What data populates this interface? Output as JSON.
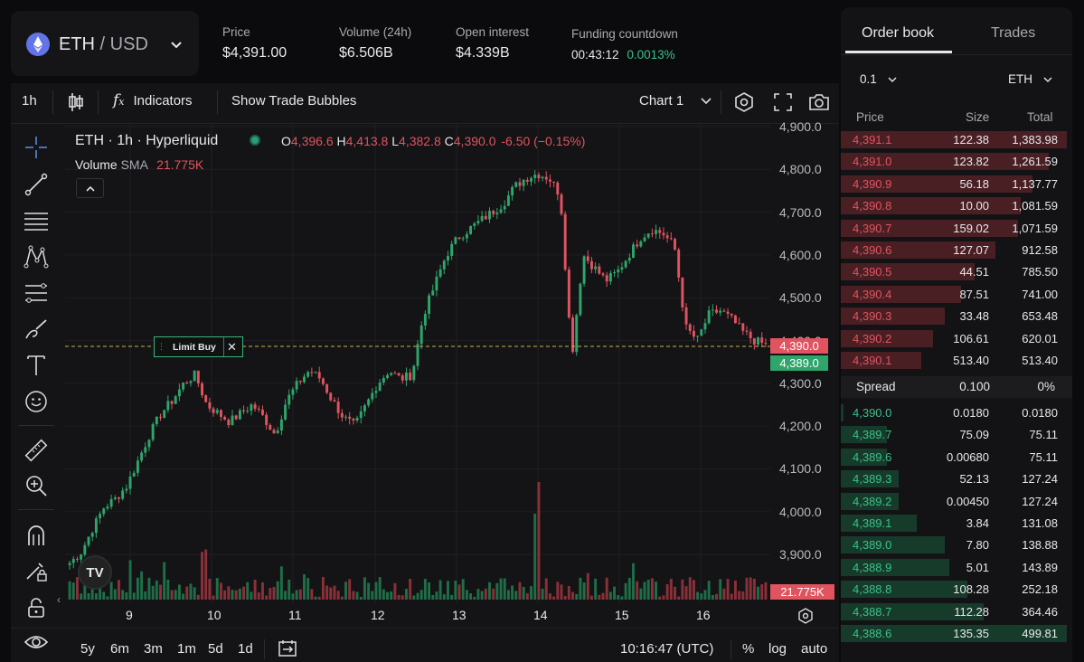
{
  "ticker": {
    "pair_base": "ETH",
    "pair_sep": " / ",
    "pair_quote": "USD",
    "stats": [
      {
        "label": "Price",
        "value": "$4,391.00"
      },
      {
        "label": "Volume (24h)",
        "value": "$6.506B"
      },
      {
        "label": "Open interest",
        "value": "$4.339B"
      }
    ],
    "funding": {
      "label": "Funding countdown",
      "time": "00:43:12",
      "rate": "0.0013%"
    }
  },
  "toolbar": {
    "interval": "1h",
    "indicators": "Indicators",
    "trade_bubbles": "Show Trade Bubbles",
    "chart_select": "Chart 1"
  },
  "chart": {
    "legend_title": "ETH · 1h · Hyperliquid",
    "ohlc": {
      "o_label": "O",
      "o": "4,396.6",
      "h_label": "H",
      "h": "4,413.8",
      "l_label": "L",
      "l": "4,382.8",
      "c_label": "C",
      "c": "4,390.0",
      "change": "-6.50 (−0.15%)"
    },
    "volume_label": "Volume",
    "volume_sma": "SMA",
    "volume_value": "21.775K",
    "limit_label": "Limit Buy",
    "price_tag_ask": "4,390.0",
    "price_tag_bid": "4,389.0",
    "volume_tag": "21.775K",
    "y_ticks": [
      "4,900.0",
      "4,800.0",
      "4,700.0",
      "4,600.0",
      "4,500.0",
      "4,400.0",
      "4,300.0",
      "4,200.0",
      "4,100.0",
      "4,000.0",
      "3,900.0"
    ],
    "x_ticks": [
      "9",
      "10",
      "11",
      "12",
      "13",
      "14",
      "15",
      "16"
    ],
    "logo": "TV"
  },
  "chart_data": {
    "type": "candlestick",
    "interval": "1h",
    "ylim": [
      3870,
      4910
    ],
    "x_ticks_day_labels": [
      "9",
      "10",
      "11",
      "12",
      "13",
      "14",
      "15",
      "16"
    ],
    "limit_order_price": 4390,
    "approx_closes": [
      3880,
      3905,
      3960,
      4010,
      4030,
      4060,
      4120,
      4180,
      4230,
      4260,
      4300,
      4320,
      4250,
      4230,
      4210,
      4230,
      4250,
      4220,
      4180,
      4260,
      4300,
      4330,
      4310,
      4260,
      4220,
      4200,
      4250,
      4300,
      4330,
      4310,
      4320,
      4460,
      4530,
      4600,
      4640,
      4660,
      4680,
      4700,
      4720,
      4760,
      4780,
      4790,
      4780,
      4740,
      4360,
      4600,
      4570,
      4540,
      4560,
      4600,
      4640,
      4660,
      4650,
      4620,
      4430,
      4400,
      4460,
      4470,
      4450,
      4420,
      4400,
      4390
    ]
  },
  "bottom": {
    "ranges": [
      "5y",
      "6m",
      "3m",
      "1m",
      "5d",
      "1d"
    ],
    "clock": "10:16:47 (UTC)",
    "percent": "%",
    "log": "log",
    "auto": "auto"
  },
  "orderbook": {
    "tabs": [
      "Order book",
      "Trades"
    ],
    "tick_size": "0.1",
    "unit": "ETH",
    "headers": [
      "Price",
      "Size",
      "Total"
    ],
    "asks": [
      [
        "4,391.1",
        "122.38",
        "1,383.98",
        0.98
      ],
      [
        "4,391.0",
        "123.82",
        "1,261.59",
        0.9
      ],
      [
        "4,390.9",
        "56.18",
        "1,137.77",
        0.83
      ],
      [
        "4,390.8",
        "10.00",
        "1,081.59",
        0.78
      ],
      [
        "4,390.7",
        "159.02",
        "1,071.59",
        0.77
      ],
      [
        "4,390.6",
        "127.07",
        "912.58",
        0.67
      ],
      [
        "4,390.5",
        "44.51",
        "785.50",
        0.58
      ],
      [
        "4,390.4",
        "87.51",
        "741.00",
        0.52
      ],
      [
        "4,390.3",
        "33.48",
        "653.48",
        0.45
      ],
      [
        "4,390.2",
        "106.61",
        "620.01",
        0.4
      ],
      [
        "4,390.1",
        "513.40",
        "513.40",
        0.35
      ]
    ],
    "spread": {
      "label": "Spread",
      "value": "0.100",
      "pct": "0%"
    },
    "bids": [
      [
        "4,390.0",
        "0.0180",
        "0.0180",
        0.01
      ],
      [
        "4,389.7",
        "75.09",
        "75.11",
        0.2
      ],
      [
        "4,389.6",
        "0.00680",
        "75.11",
        0.2
      ],
      [
        "4,389.3",
        "52.13",
        "127.24",
        0.25
      ],
      [
        "4,389.2",
        "0.00450",
        "127.24",
        0.25
      ],
      [
        "4,389.1",
        "3.84",
        "131.08",
        0.33
      ],
      [
        "4,389.0",
        "7.80",
        "138.88",
        0.45
      ],
      [
        "4,388.9",
        "5.01",
        "143.89",
        0.47
      ],
      [
        "4,388.8",
        "108.28",
        "252.18",
        0.55
      ],
      [
        "4,388.7",
        "112.28",
        "364.46",
        0.62
      ],
      [
        "4,388.6",
        "135.35",
        "499.81",
        0.98
      ]
    ]
  }
}
